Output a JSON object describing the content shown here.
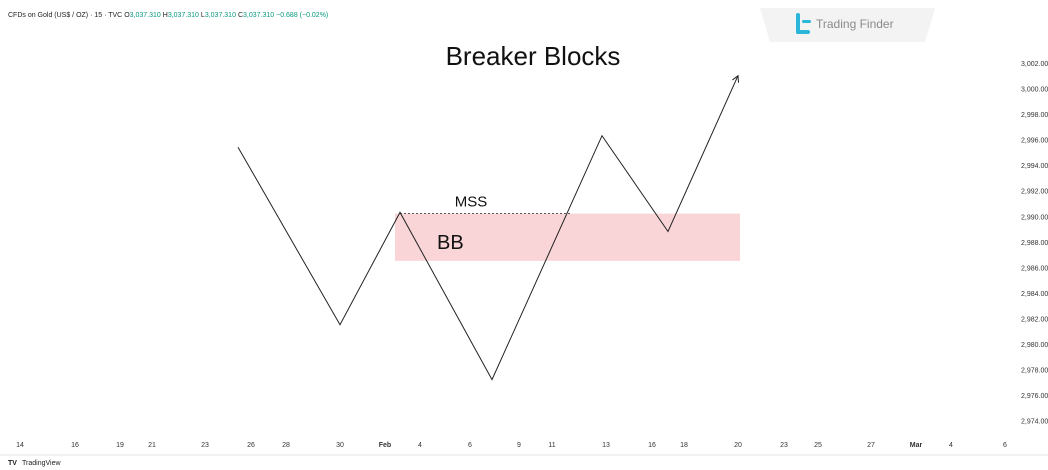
{
  "header": {
    "symbol": "CFDs on Gold (US$ / OZ) · 15 · TVC",
    "ohlc": [
      {
        "key": "O",
        "value": "3,037.310"
      },
      {
        "key": "H",
        "value": "3,037.310"
      },
      {
        "key": "L",
        "value": "3,037.310"
      },
      {
        "key": "C",
        "value": "3,037.310"
      }
    ],
    "change": "−0.688 (−0.02%)"
  },
  "logo": "Trading Finder",
  "footer": "TradingView",
  "chart_data": {
    "type": "line",
    "title": "Breaker Blocks",
    "color": "#222222",
    "x": [
      23.8,
      34.0,
      40.0,
      49.2,
      60.2,
      66.8,
      73.8
    ],
    "values": [
      2995.5,
      2981.6,
      2990.4,
      2977.3,
      2996.4,
      2988.9,
      3001.1
    ],
    "xlim": [
      0,
      101.5
    ],
    "xticks": [
      {
        "value": 2,
        "label": "14"
      },
      {
        "value": 7.5,
        "label": "16"
      },
      {
        "value": 12,
        "label": "19"
      },
      {
        "value": 15.2,
        "label": "21"
      },
      {
        "value": 20.5,
        "label": "23"
      },
      {
        "value": 25.1,
        "label": "26"
      },
      {
        "value": 28.6,
        "label": "28"
      },
      {
        "value": 34,
        "label": "30"
      },
      {
        "value": 38.5,
        "label": "Feb"
      },
      {
        "value": 42,
        "label": "4"
      },
      {
        "value": 47,
        "label": "6"
      },
      {
        "value": 51.9,
        "label": "9"
      },
      {
        "value": 55.2,
        "label": "11"
      },
      {
        "value": 60.6,
        "label": "13"
      },
      {
        "value": 65.2,
        "label": "16"
      },
      {
        "value": 68.4,
        "label": "18"
      },
      {
        "value": 73.8,
        "label": "20"
      },
      {
        "value": 78.4,
        "label": "23"
      },
      {
        "value": 81.8,
        "label": "25"
      },
      {
        "value": 87.1,
        "label": "27"
      },
      {
        "value": 91.6,
        "label": "Mar"
      },
      {
        "value": 95.1,
        "label": "4"
      },
      {
        "value": 100.5,
        "label": "6"
      }
    ],
    "ylim": [
      2973.2,
      3006.4
    ],
    "yticks": [
      {
        "value": 2974,
        "label": "2,974.00"
      },
      {
        "value": 2976,
        "label": "2,976.00"
      },
      {
        "value": 2978,
        "label": "2,978.00"
      },
      {
        "value": 2980,
        "label": "2,980.00"
      },
      {
        "value": 2982,
        "label": "2,982.00"
      },
      {
        "value": 2984,
        "label": "2,984.00"
      },
      {
        "value": 2986,
        "label": "2,986.00"
      },
      {
        "value": 2988,
        "label": "2,988.00"
      },
      {
        "value": 2990,
        "label": "2,990.00"
      },
      {
        "value": 2992,
        "label": "2,992.00"
      },
      {
        "value": 2994,
        "label": "2,994.00"
      },
      {
        "value": 2996,
        "label": "2,996.00"
      },
      {
        "value": 2998,
        "label": "2,998.00"
      },
      {
        "value": 3000,
        "label": "3,000.00"
      },
      {
        "value": 3002,
        "label": "3,002.00"
      }
    ],
    "mss": {
      "label": "MSS",
      "y": 2990.3,
      "x": [
        40.0,
        57.0
      ]
    },
    "zone": {
      "label": "BB",
      "color": "#f9d5d7",
      "x": [
        39.5,
        74.0
      ],
      "y": [
        2986.6,
        2990.3
      ]
    }
  }
}
